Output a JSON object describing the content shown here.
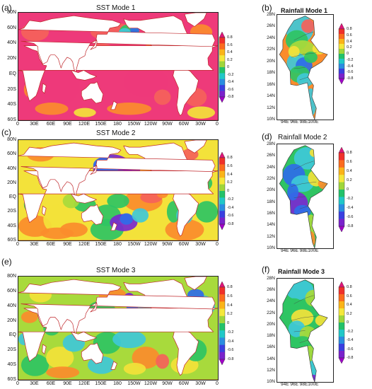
{
  "panels": [
    {
      "key": "a",
      "label": "(a)",
      "title": "SST Mode 1"
    },
    {
      "key": "b",
      "label": "(b)",
      "title": "Rainfall Mode 1"
    },
    {
      "key": "c",
      "label": "(c)",
      "title": "SST Mode 2"
    },
    {
      "key": "d",
      "label": "(d)",
      "title": "Rainfall Mode 2"
    },
    {
      "key": "e",
      "label": "(e)",
      "title": "SST Mode 3"
    },
    {
      "key": "f",
      "label": "(f)",
      "title": "Rainfall Mode 3"
    }
  ],
  "sst_lat_labels": [
    "80N",
    "60N",
    "40N",
    "20N",
    "EQ",
    "20S",
    "40S",
    "60S"
  ],
  "sst_lon_labels": [
    "0",
    "30E",
    "60E",
    "90E",
    "120E",
    "150E",
    "180",
    "150W",
    "120W",
    "90W",
    "60W",
    "30W",
    "0"
  ],
  "rain_lat_labels": [
    "28N",
    "26N",
    "24N",
    "22N",
    "20N",
    "18N",
    "16N",
    "14N",
    "12N",
    "10N"
  ],
  "rain_lon_label": "94E 96E 98E100E",
  "colorbar_ticks": [
    "0.8",
    "0.6",
    "0.4",
    "0.2",
    "0",
    "-0.2",
    "-0.4",
    "-0.6",
    "-0.8"
  ],
  "colorbar_colors": [
    "#e0147a",
    "#f0302a",
    "#fb6b1e",
    "#fbb418",
    "#f5e83a",
    "#9fd63a",
    "#22c26a",
    "#20c8c8",
    "#2a8de0",
    "#3a3fe0",
    "#7a22cc",
    "#a000c8"
  ],
  "map_colors": {
    "strong_pos": "#ee3a7a",
    "pos": "#f5625a",
    "orange": "#fb8c2c",
    "yellow": "#f3e23a",
    "lightgreen": "#a8da3c",
    "green": "#2fc463",
    "cyan": "#3fc8d8",
    "blue": "#2f6ce8",
    "purple": "#7a28d0",
    "land": "#ffffff",
    "coast": "#c0282c"
  }
}
